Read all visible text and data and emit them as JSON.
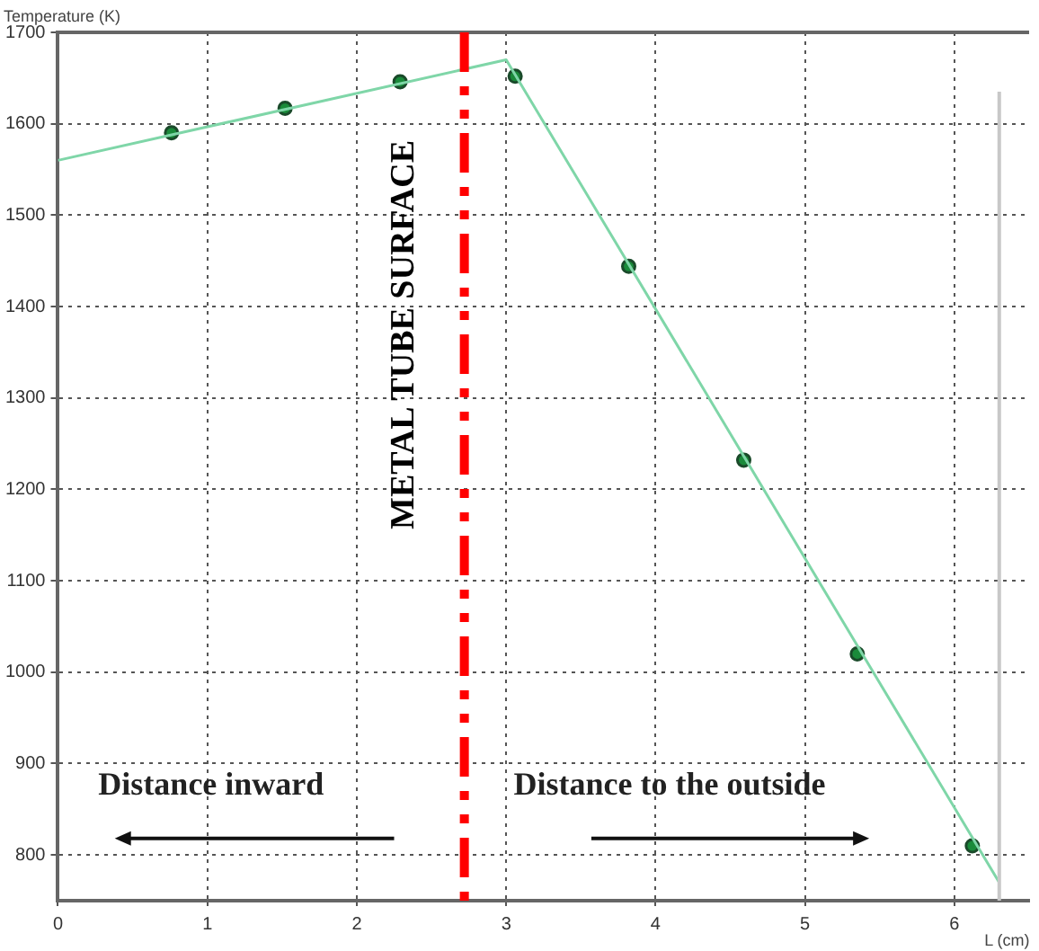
{
  "chart_data": {
    "type": "line",
    "xlabel": "L (cm)",
    "ylabel": "Temperature (K)",
    "xlim": [
      0,
      6.5
    ],
    "xticks": [
      0,
      1,
      2,
      3,
      4,
      5,
      6
    ],
    "ylim": [
      750,
      1700
    ],
    "yticks": [
      800,
      900,
      1000,
      1100,
      1200,
      1300,
      1400,
      1500,
      1600,
      1700
    ],
    "grid": true,
    "legend": false,
    "series": [
      {
        "type": "line",
        "color": "#7fd6a8",
        "marker": "none",
        "x": [
          0,
          3.0,
          6.3
        ],
        "values": [
          1560,
          1670,
          770
        ]
      },
      {
        "type": "scatter",
        "color": "#1a8a3a",
        "marker": "circle",
        "x": [
          0.76,
          1.52,
          2.29,
          3.06,
          3.82,
          4.59,
          5.35,
          6.12
        ],
        "values": [
          1590,
          1617,
          1646,
          1652,
          1444,
          1232,
          1020,
          810
        ]
      }
    ],
    "ref_lines": [
      {
        "axis": "x",
        "value": 2.72,
        "label": "METAL TUBE SURFACE",
        "color": "#ff0000",
        "line_style": "dashed"
      },
      {
        "axis": "x",
        "value": 6.3,
        "color": "#c8c8c8",
        "line_style": "solid"
      }
    ],
    "annotations": [
      "Distance inward",
      "Distance to the outside"
    ]
  }
}
